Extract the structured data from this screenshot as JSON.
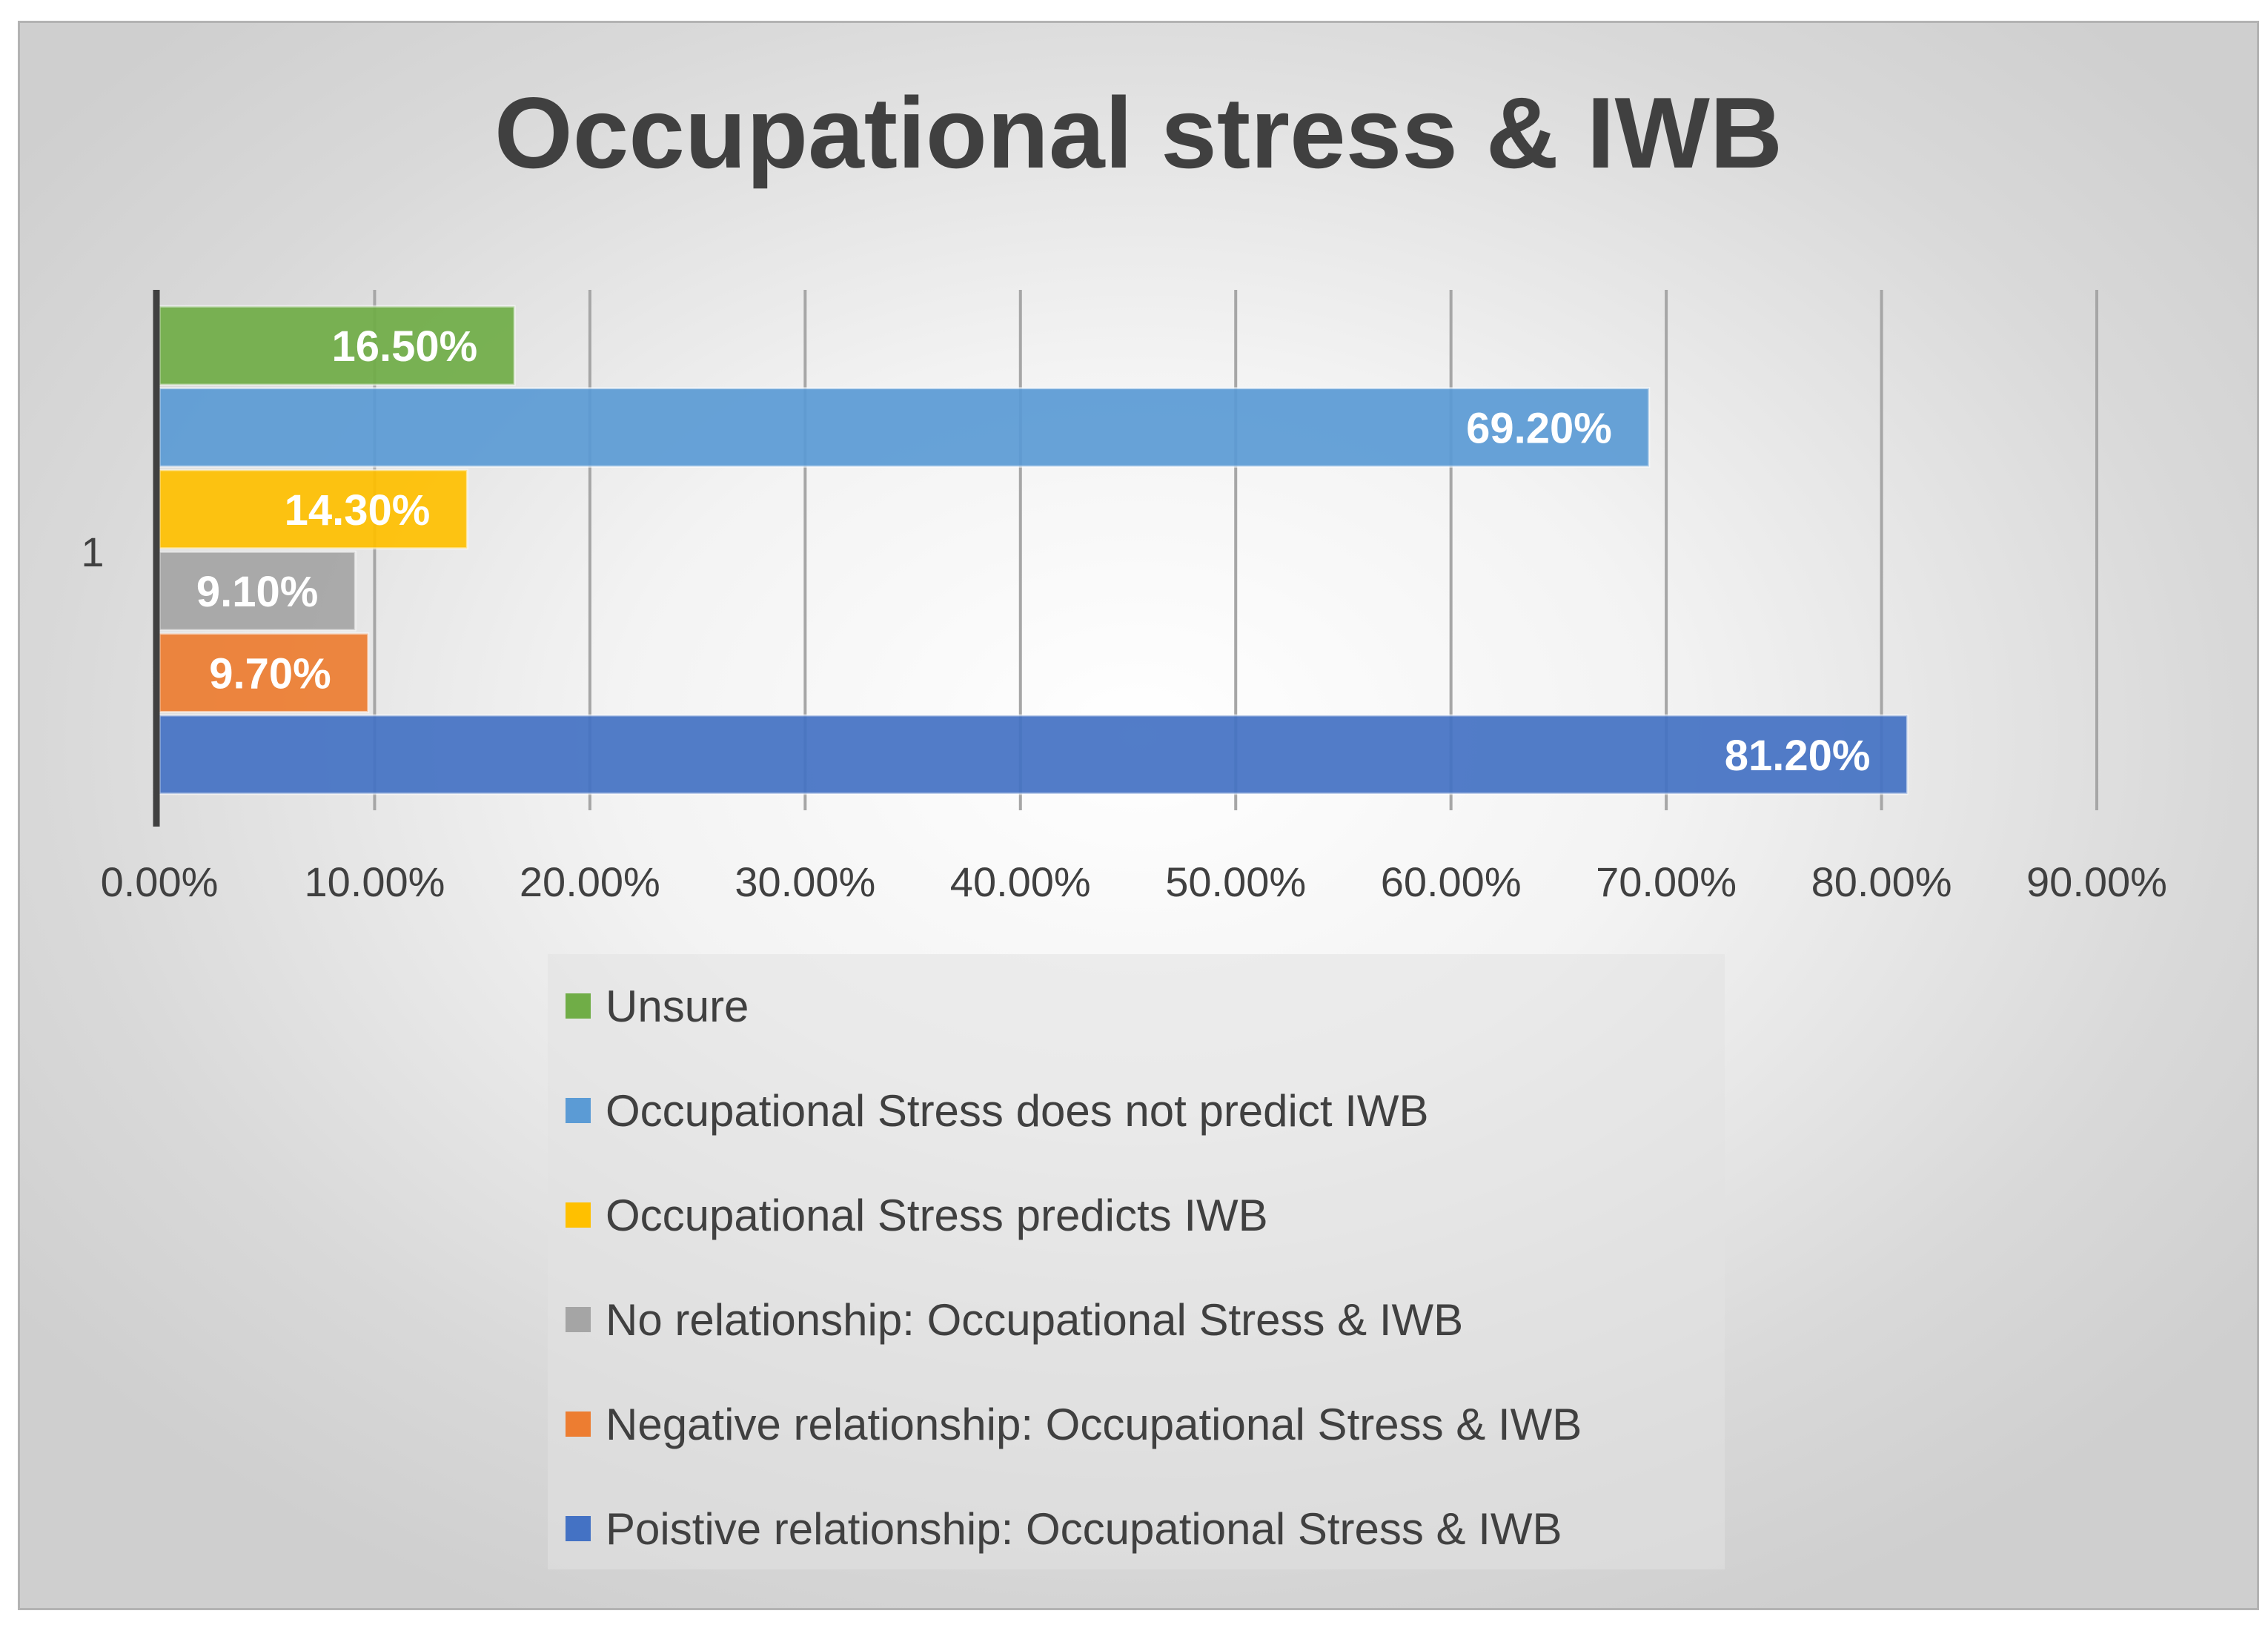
{
  "chart_data": {
    "type": "bar",
    "orientation": "horizontal",
    "title": "Occupational stress & IWB",
    "categories": [
      "1"
    ],
    "series": [
      {
        "name": "Unsure",
        "values": [
          0.165
        ],
        "label": "16.50%",
        "color": "#70ad47"
      },
      {
        "name": "Occupational Stress does not predict IWB",
        "values": [
          0.692
        ],
        "label": "69.20%",
        "color": "#5b9bd5"
      },
      {
        "name": "Occupational Stress predicts IWB",
        "values": [
          0.143
        ],
        "label": "14.30%",
        "color": "#ffc000"
      },
      {
        "name": "No relationship: Occupational Stress & IWB",
        "values": [
          0.091
        ],
        "label": "9.10%",
        "color": "#a5a5a5"
      },
      {
        "name": "Negative relationship: Occupational Stress & IWB",
        "values": [
          0.097
        ],
        "label": "9.70%",
        "color": "#ed7d31"
      },
      {
        "name": "Poistive relationship: Occupational Stress & IWB",
        "values": [
          0.812
        ],
        "label": "81.20%",
        "color": "#4472c4"
      }
    ],
    "xlim": [
      0,
      0.9
    ],
    "xticks": [
      0,
      0.1,
      0.2,
      0.3,
      0.4,
      0.5,
      0.6,
      0.7,
      0.8,
      0.9
    ],
    "xtick_labels": [
      "0.00%",
      "10.00%",
      "20.00%",
      "30.00%",
      "40.00%",
      "50.00%",
      "60.00%",
      "70.00%",
      "80.00%",
      "90.00%"
    ],
    "grid": "vertical",
    "legend": "bottom"
  }
}
